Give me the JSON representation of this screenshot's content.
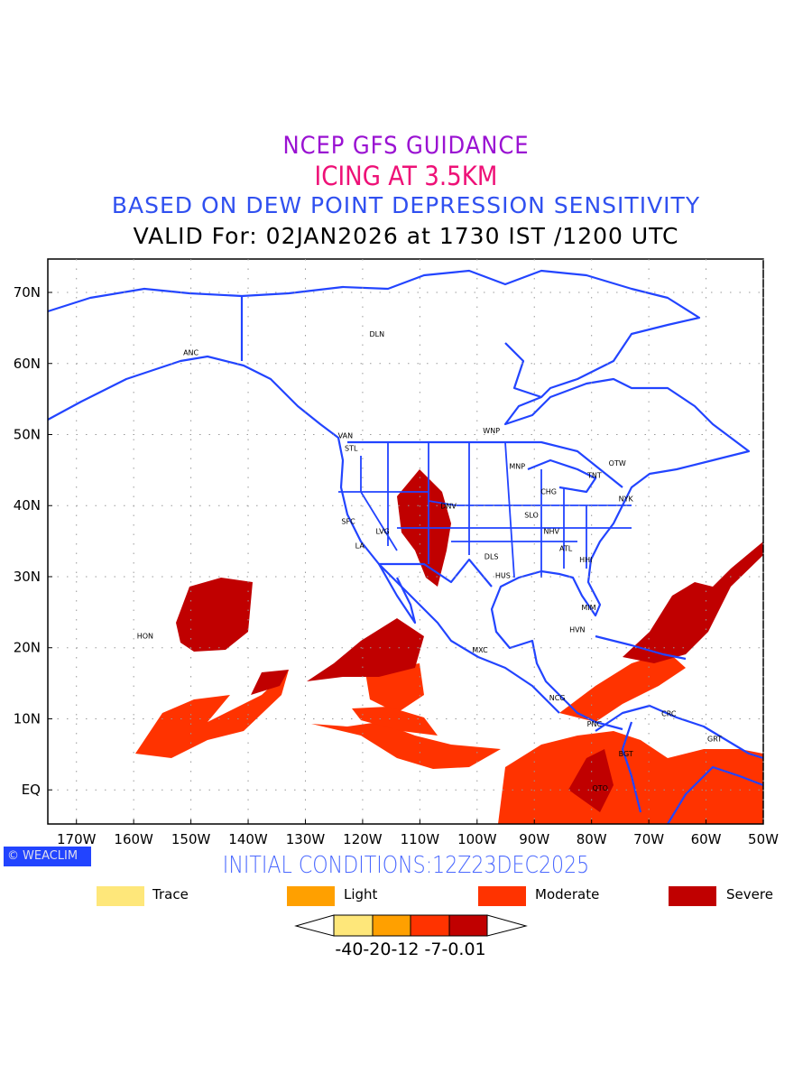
{
  "titles": {
    "line1": "NCEP GFS GUIDANCE",
    "line2": "ICING AT 3.5KM",
    "line3": "BASED ON DEW POINT DEPRESSION SENSITIVITY",
    "line4": "VALID For: 02JAN2026 at 1730 IST /1200 UTC"
  },
  "initial_conditions": "INITIAL CONDITIONS:12Z23DEC2025",
  "logo": {
    "symbol": "©",
    "text": "WEACLIM"
  },
  "axes": {
    "lon_labels": [
      "170W",
      "160W",
      "150W",
      "140W",
      "130W",
      "120W",
      "110W",
      "100W",
      "90W",
      "80W",
      "70W",
      "60W",
      "50W"
    ],
    "lon_values": [
      -170,
      -160,
      -150,
      -140,
      -130,
      -120,
      -110,
      -100,
      -90,
      -80,
      -70,
      -60,
      -50
    ],
    "lat_labels": [
      "70N",
      "60N",
      "50N",
      "40N",
      "30N",
      "20N",
      "10N",
      "EQ"
    ],
    "lat_values": [
      70,
      60,
      50,
      40,
      30,
      20,
      10,
      0
    ],
    "lon_range": [
      -175,
      -50
    ],
    "lat_range": [
      -4.8,
      74.7
    ]
  },
  "cities": [
    {
      "name": "ANC",
      "lon": -150,
      "lat": 61.2
    },
    {
      "name": "DLN",
      "lon": -117.5,
      "lat": 63.8
    },
    {
      "name": "VAN",
      "lon": -123,
      "lat": 49.5
    },
    {
      "name": "STL",
      "lon": -122,
      "lat": 47.7
    },
    {
      "name": "WNP",
      "lon": -97.5,
      "lat": 50.2
    },
    {
      "name": "MNP",
      "lon": -93,
      "lat": 45.2
    },
    {
      "name": "OTW",
      "lon": -75.5,
      "lat": 45.6
    },
    {
      "name": "TNT",
      "lon": -79.5,
      "lat": 43.9
    },
    {
      "name": "CHG",
      "lon": -87.5,
      "lat": 41.6
    },
    {
      "name": "NYK",
      "lon": -74,
      "lat": 40.6
    },
    {
      "name": "DNV",
      "lon": -105,
      "lat": 39.6
    },
    {
      "name": "SFC",
      "lon": -122.5,
      "lat": 37.4
    },
    {
      "name": "SLO",
      "lon": -90.5,
      "lat": 38.3
    },
    {
      "name": "LVG",
      "lon": -116.5,
      "lat": 36
    },
    {
      "name": "NHV",
      "lon": -87,
      "lat": 36
    },
    {
      "name": "LA",
      "lon": -120.5,
      "lat": 34
    },
    {
      "name": "ATL",
      "lon": -84.5,
      "lat": 33.6
    },
    {
      "name": "DLS",
      "lon": -97.5,
      "lat": 32.5
    },
    {
      "name": "HHI",
      "lon": -81,
      "lat": 32
    },
    {
      "name": "HUS",
      "lon": -95.5,
      "lat": 29.8
    },
    {
      "name": "MIM",
      "lon": -80.5,
      "lat": 25.3
    },
    {
      "name": "HVN",
      "lon": -82.5,
      "lat": 22.2
    },
    {
      "name": "HON",
      "lon": -158,
      "lat": 21.3
    },
    {
      "name": "MXC",
      "lon": -99.5,
      "lat": 19.3
    },
    {
      "name": "NCG",
      "lon": -86,
      "lat": 12.6
    },
    {
      "name": "CRC",
      "lon": -66.5,
      "lat": 10.4
    },
    {
      "name": "PNC",
      "lon": -79.5,
      "lat": 8.9
    },
    {
      "name": "GRT",
      "lon": -58.5,
      "lat": 6.8
    },
    {
      "name": "BGT",
      "lon": -74,
      "lat": 4.7
    },
    {
      "name": "QTO",
      "lon": -78.5,
      "lat": -0.1
    }
  ],
  "legend": [
    {
      "label": "Trace",
      "color": "#fee77a"
    },
    {
      "label": "Light",
      "color": "#ffa000"
    },
    {
      "label": "Moderate",
      "color": "#ff3300"
    },
    {
      "label": "Severe",
      "color": "#c00000"
    }
  ],
  "colorbar": {
    "labels": "-40-20-12 -7-0.01"
  },
  "colors": {
    "coast": "#2244ff",
    "severe": "#c00000",
    "moderate": "#ff3300"
  }
}
